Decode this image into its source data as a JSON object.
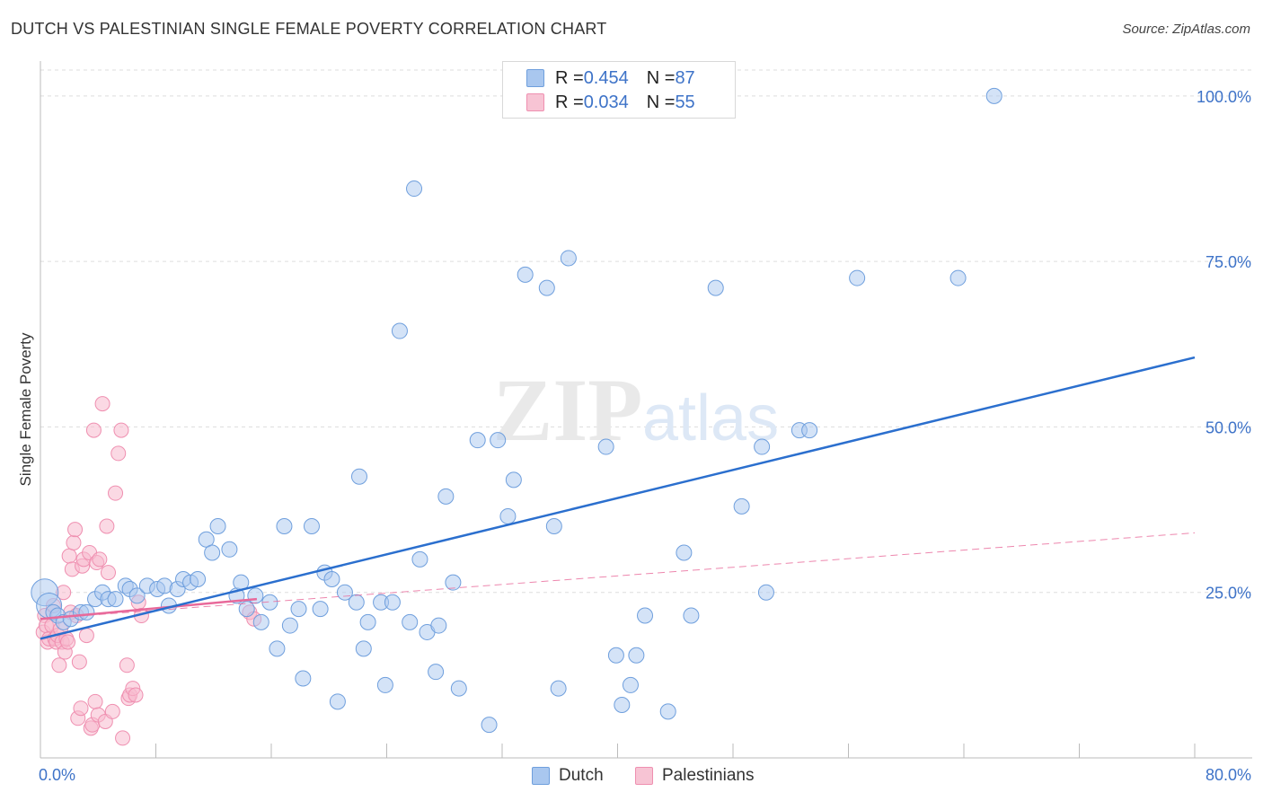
{
  "title": "DUTCH VS PALESTINIAN SINGLE FEMALE POVERTY CORRELATION CHART",
  "source": "Source: ZipAtlas.com",
  "watermark": {
    "zip": "ZIP",
    "atlas": "atlas"
  },
  "legend": {
    "dutch": {
      "r_label": "R = ",
      "r_value": "0.454",
      "n_label": "N = ",
      "n_value": "87"
    },
    "palestinians": {
      "r_label": "R = ",
      "r_value": "0.034",
      "n_label": "N = ",
      "n_value": "55"
    }
  },
  "bottom_legend": {
    "dutch": "Dutch",
    "palestinians": "Palestinians"
  },
  "colors": {
    "dutch_fill": "#a9c7ef",
    "dutch_stroke": "#6f9fdd",
    "dutch_line": "#2b6fce",
    "pal_fill": "#f7b9cd",
    "pal_stroke": "#ef8fb0",
    "pal_line": "#e8699a",
    "tick_label": "#3e73c8",
    "grid": "#dddddd"
  },
  "chart_data": {
    "type": "scatter",
    "title": "DUTCH VS PALESTINIAN SINGLE FEMALE POVERTY CORRELATION CHART",
    "xlabel": "",
    "ylabel": "Single Female Poverty",
    "xlim": [
      0,
      80
    ],
    "ylim": [
      0,
      105
    ],
    "x_tick_labels": [
      "0.0%",
      "80.0%"
    ],
    "y_ticks": [
      25,
      50,
      75,
      100
    ],
    "y_tick_labels": [
      "25.0%",
      "50.0%",
      "75.0%",
      "100.0%"
    ],
    "grid": true,
    "legend_position": "top-center",
    "series": [
      {
        "name": "Dutch",
        "trend": {
          "x": [
            0,
            80
          ],
          "y": [
            18.0,
            60.5
          ]
        },
        "points": [
          [
            0.3,
            25.0
          ],
          [
            0.6,
            23.0
          ],
          [
            0.9,
            22.0
          ],
          [
            1.2,
            21.5
          ],
          [
            1.6,
            20.5
          ],
          [
            2.1,
            21.0
          ],
          [
            2.8,
            22.0
          ],
          [
            3.2,
            22.0
          ],
          [
            3.8,
            24.0
          ],
          [
            4.3,
            25.0
          ],
          [
            4.7,
            24.0
          ],
          [
            5.2,
            24.0
          ],
          [
            5.9,
            26.0
          ],
          [
            6.2,
            25.5
          ],
          [
            6.7,
            24.5
          ],
          [
            7.4,
            26.0
          ],
          [
            8.1,
            25.5
          ],
          [
            8.6,
            26.0
          ],
          [
            8.9,
            23.0
          ],
          [
            9.5,
            25.5
          ],
          [
            9.9,
            27.0
          ],
          [
            10.4,
            26.5
          ],
          [
            10.9,
            27.0
          ],
          [
            11.5,
            33.0
          ],
          [
            11.9,
            31.0
          ],
          [
            12.3,
            35.0
          ],
          [
            13.1,
            31.5
          ],
          [
            13.6,
            24.5
          ],
          [
            13.9,
            26.5
          ],
          [
            14.3,
            22.5
          ],
          [
            14.9,
            24.5
          ],
          [
            15.3,
            20.5
          ],
          [
            15.9,
            23.5
          ],
          [
            16.4,
            16.5
          ],
          [
            16.9,
            35.0
          ],
          [
            17.3,
            20.0
          ],
          [
            17.9,
            22.5
          ],
          [
            18.2,
            12.0
          ],
          [
            18.8,
            35.0
          ],
          [
            19.4,
            22.5
          ],
          [
            19.7,
            28.0
          ],
          [
            20.2,
            27.0
          ],
          [
            20.6,
            8.5
          ],
          [
            21.1,
            25.0
          ],
          [
            21.9,
            23.5
          ],
          [
            22.1,
            42.5
          ],
          [
            22.4,
            16.5
          ],
          [
            22.7,
            20.5
          ],
          [
            23.6,
            23.5
          ],
          [
            23.9,
            11.0
          ],
          [
            24.4,
            23.5
          ],
          [
            24.9,
            64.5
          ],
          [
            25.6,
            20.5
          ],
          [
            25.9,
            86.0
          ],
          [
            26.3,
            30.0
          ],
          [
            26.8,
            19.0
          ],
          [
            27.4,
            13.0
          ],
          [
            27.6,
            20.0
          ],
          [
            28.1,
            39.5
          ],
          [
            28.6,
            26.5
          ],
          [
            29.0,
            10.5
          ],
          [
            30.3,
            48.0
          ],
          [
            31.1,
            5.0
          ],
          [
            31.7,
            48.0
          ],
          [
            32.4,
            36.5
          ],
          [
            32.8,
            42.0
          ],
          [
            33.6,
            73.0
          ],
          [
            35.1,
            71.0
          ],
          [
            35.6,
            35.0
          ],
          [
            35.9,
            10.5
          ],
          [
            36.6,
            75.5
          ],
          [
            39.2,
            47.0
          ],
          [
            39.9,
            15.5
          ],
          [
            40.3,
            8.0
          ],
          [
            40.9,
            11.0
          ],
          [
            41.3,
            15.5
          ],
          [
            41.9,
            21.5
          ],
          [
            43.5,
            7.0
          ],
          [
            44.6,
            31.0
          ],
          [
            45.1,
            21.5
          ],
          [
            46.8,
            71.0
          ],
          [
            48.6,
            38.0
          ],
          [
            50.0,
            47.0
          ],
          [
            50.3,
            25.0
          ],
          [
            52.6,
            49.5
          ],
          [
            53.3,
            49.5
          ],
          [
            56.6,
            72.5
          ],
          [
            63.6,
            72.5
          ],
          [
            66.1,
            100.0
          ]
        ]
      },
      {
        "name": "Palestinians",
        "trend_solid": {
          "x": [
            0,
            15
          ],
          "y": [
            21.0,
            24.0
          ]
        },
        "trend_dashed": {
          "x": [
            0,
            80
          ],
          "y": [
            21.0,
            34.0
          ]
        },
        "points": [
          [
            0.2,
            19.0
          ],
          [
            0.3,
            21.5
          ],
          [
            0.4,
            20.0
          ],
          [
            0.5,
            17.5
          ],
          [
            0.6,
            18.0
          ],
          [
            0.8,
            20.0
          ],
          [
            0.9,
            23.0
          ],
          [
            1.0,
            18.0
          ],
          [
            1.1,
            17.5
          ],
          [
            1.2,
            18.5
          ],
          [
            1.3,
            14.0
          ],
          [
            1.4,
            19.5
          ],
          [
            1.5,
            17.5
          ],
          [
            1.6,
            25.0
          ],
          [
            1.7,
            16.0
          ],
          [
            1.8,
            18.0
          ],
          [
            1.9,
            17.5
          ],
          [
            2.0,
            30.5
          ],
          [
            2.1,
            22.0
          ],
          [
            2.2,
            28.5
          ],
          [
            2.3,
            32.5
          ],
          [
            2.4,
            34.5
          ],
          [
            2.5,
            21.5
          ],
          [
            2.6,
            6.0
          ],
          [
            2.7,
            14.5
          ],
          [
            2.8,
            7.5
          ],
          [
            2.9,
            29.0
          ],
          [
            3.0,
            30.0
          ],
          [
            3.2,
            18.5
          ],
          [
            3.4,
            31.0
          ],
          [
            3.5,
            4.5
          ],
          [
            3.6,
            5.0
          ],
          [
            3.7,
            49.5
          ],
          [
            3.8,
            8.5
          ],
          [
            3.9,
            29.5
          ],
          [
            4.0,
            6.5
          ],
          [
            4.1,
            30.0
          ],
          [
            4.3,
            53.5
          ],
          [
            4.5,
            5.5
          ],
          [
            4.6,
            35.0
          ],
          [
            4.7,
            28.0
          ],
          [
            5.0,
            7.0
          ],
          [
            5.2,
            40.0
          ],
          [
            5.4,
            46.0
          ],
          [
            5.6,
            49.5
          ],
          [
            5.7,
            3.0
          ],
          [
            6.0,
            14.0
          ],
          [
            6.1,
            9.0
          ],
          [
            6.2,
            9.5
          ],
          [
            6.4,
            10.5
          ],
          [
            6.6,
            9.5
          ],
          [
            6.8,
            23.5
          ],
          [
            7.0,
            21.5
          ],
          [
            14.5,
            22.0
          ],
          [
            14.8,
            21.0
          ]
        ]
      }
    ]
  }
}
